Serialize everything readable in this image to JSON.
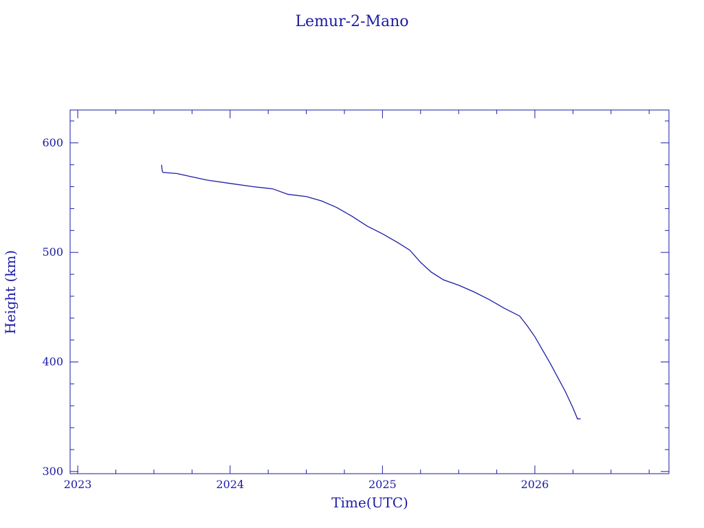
{
  "chart_data": {
    "type": "line",
    "title": "Lemur-2-Mano",
    "xlabel": "Time(UTC)",
    "ylabel": "Height (km)",
    "xlim": [
      2022.95,
      2026.88
    ],
    "ylim": [
      298,
      630
    ],
    "x_ticks": [
      2023,
      2024,
      2025,
      2026
    ],
    "x_tick_labels": [
      "2023",
      "2024",
      "2025",
      "2026"
    ],
    "x_minor_step": 0.25,
    "y_ticks": [
      300,
      400,
      500,
      600
    ],
    "y_tick_labels": [
      "300",
      "400",
      "500",
      "600"
    ],
    "y_minor_step": 20,
    "grid": false,
    "legend": "none",
    "colors": {
      "ink": "#1a1aa6"
    },
    "series": [
      {
        "x": [
          2023.55,
          2023.555,
          2023.56,
          2023.65,
          2023.75,
          2023.85,
          2024.0,
          2024.15,
          2024.28,
          2024.38,
          2024.5,
          2024.6,
          2024.7,
          2024.8,
          2024.9,
          2025.0,
          2025.1,
          2025.18,
          2025.25,
          2025.32,
          2025.4,
          2025.5,
          2025.6,
          2025.7,
          2025.8,
          2025.9,
          2025.95,
          2026.0,
          2026.05,
          2026.1,
          2026.15,
          2026.2,
          2026.25,
          2026.28,
          2026.3
        ],
        "y": [
          580,
          574,
          573,
          572,
          569,
          566,
          563,
          560,
          558,
          553,
          551,
          547,
          541,
          533,
          524,
          517,
          509,
          502,
          491,
          482,
          475,
          470,
          464,
          457,
          449,
          442,
          433,
          423,
          411,
          399,
          386,
          373,
          358,
          348,
          348
        ]
      }
    ]
  }
}
